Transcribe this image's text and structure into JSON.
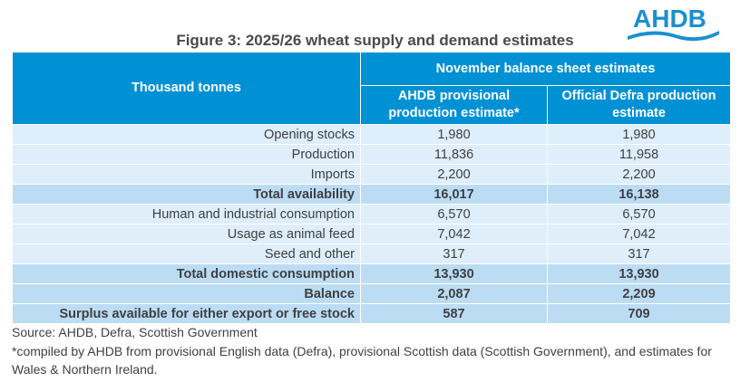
{
  "logo": {
    "text": "AHDB",
    "color": "#1a8fd0"
  },
  "title": "Figure 3: 2025/26 wheat supply and demand estimates",
  "header": {
    "row_label": "Thousand tonnes",
    "group": "November balance sheet estimates",
    "col1": "AHDB provisional production estimate*",
    "col2": "Official Defra production estimate"
  },
  "rows": [
    {
      "label": "Opening stocks",
      "ahdb": "1,980",
      "defra": "1,980",
      "bold": false
    },
    {
      "label": "Production",
      "ahdb": "11,836",
      "defra": "11,958",
      "bold": false
    },
    {
      "label": "Imports",
      "ahdb": "2,200",
      "defra": "2,200",
      "bold": false
    },
    {
      "label": "Total availability",
      "ahdb": "16,017",
      "defra": "16,138",
      "bold": true
    },
    {
      "label": "Human and industrial consumption",
      "ahdb": "6,570",
      "defra": "6,570",
      "bold": false
    },
    {
      "label": "Usage as animal feed",
      "ahdb": "7,042",
      "defra": "7,042",
      "bold": false
    },
    {
      "label": "Seed and other",
      "ahdb": "317",
      "defra": "317",
      "bold": false
    },
    {
      "label": "Total domestic consumption",
      "ahdb": "13,930",
      "defra": "13,930",
      "bold": true
    },
    {
      "label": "Balance",
      "ahdb": "2,087",
      "defra": "2,209",
      "bold": true
    },
    {
      "label": "Surplus available for either export or free stock",
      "ahdb": "587",
      "defra": "709",
      "bold": true
    }
  ],
  "source": "Source: AHDB, Defra, Scottish Government",
  "footnote": "*compiled by AHDB from provisional English data (Defra), provisional Scottish data (Scottish Government), and estimates for Wales & Northern Ireland.",
  "colors": {
    "header": "#0091d5",
    "row": "#deeefa",
    "total_row": "#bcdcf4"
  }
}
